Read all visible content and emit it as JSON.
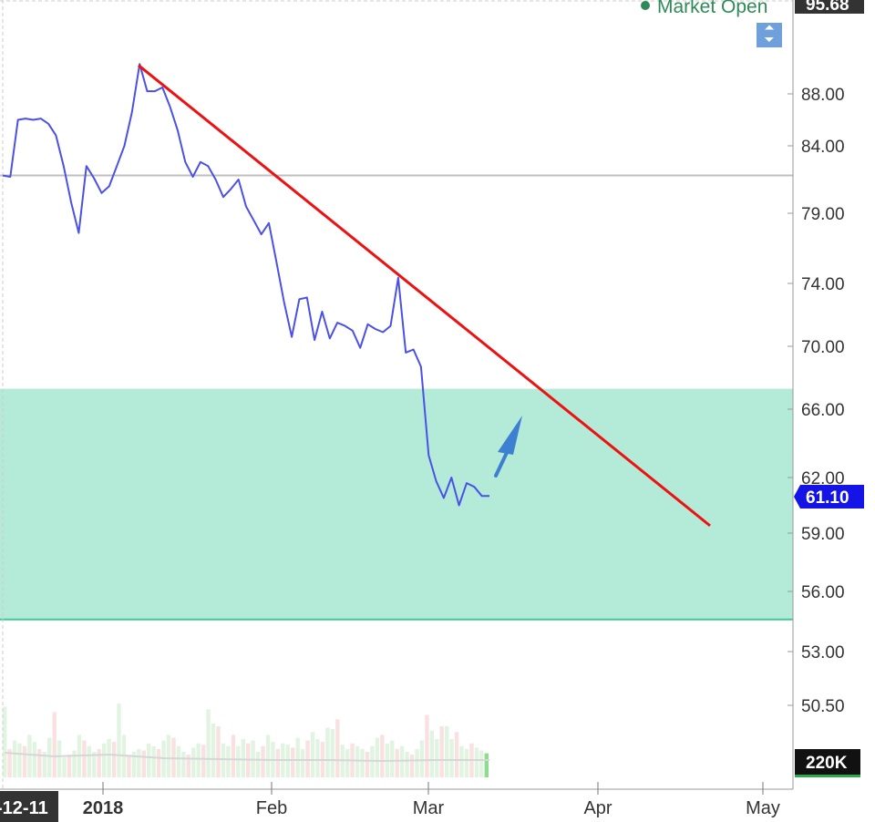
{
  "status": {
    "market_open": "Market Open",
    "dot_color": "#2e8b57"
  },
  "controls": {
    "collapse_icon": "collapse-vertical-icon"
  },
  "price_tag": {
    "last": "61.10",
    "top": "95.68",
    "volume": "220K"
  },
  "chart_data": {
    "type": "line",
    "y_axis": {
      "ticks": [
        "88.00",
        "84.00",
        "79.00",
        "74.00",
        "70.00",
        "66.00",
        "62.00",
        "59.00",
        "56.00",
        "53.00",
        "50.50"
      ],
      "tick_values": [
        88.0,
        84.0,
        79.0,
        74.0,
        70.0,
        66.0,
        62.0,
        59.0,
        56.0,
        53.0,
        50.5
      ]
    },
    "x_axis": {
      "labels": [
        "-12-11",
        "2018",
        "Feb",
        "Mar",
        "Apr",
        "May"
      ]
    },
    "zones": [
      {
        "name": "gray-zone",
        "from": 67.3,
        "to": 81.8,
        "color": "#f0f0f0"
      },
      {
        "name": "green-zone",
        "from": 54.6,
        "to": 67.3,
        "color": "#b3ebd8"
      }
    ],
    "series": [
      {
        "values": [
          81.8,
          81.7,
          86.0,
          86.1,
          86.0,
          86.1,
          85.7,
          84.8,
          82.5,
          79.8,
          77.6,
          82.5,
          81.6,
          80.5,
          81.0,
          82.5,
          84.0,
          86.6,
          90.3,
          88.2,
          88.2,
          88.5,
          87.0,
          85.2,
          82.8,
          81.7,
          82.8,
          82.5,
          81.5,
          80.2,
          80.8,
          81.5,
          79.5,
          78.5,
          77.5,
          78.3,
          75.5,
          72.8,
          70.6,
          73.0,
          73.1,
          70.4,
          72.2,
          70.5,
          71.5,
          71.3,
          71.0,
          69.9,
          71.4,
          71.1,
          70.9,
          71.3,
          74.4,
          69.6,
          69.8,
          68.7,
          63.3,
          61.8,
          60.9,
          62.0,
          60.5,
          61.7,
          61.5,
          61.0,
          61.0
        ],
        "color": "#4b50e6"
      }
    ],
    "trendline": {
      "from": 90.2,
      "to": 59.4,
      "color": "#ee1111"
    },
    "volume_scale": {
      "label": "220K"
    },
    "volume": [
      50,
      20,
      26,
      24,
      22,
      30,
      25,
      20,
      18,
      28,
      46,
      26,
      14,
      16,
      19,
      30,
      26,
      22,
      18,
      20,
      24,
      27,
      25,
      52,
      30,
      16,
      18,
      20,
      19,
      24,
      22,
      20,
      26,
      30,
      28,
      22,
      18,
      16,
      21,
      24,
      23,
      48,
      38,
      36,
      24,
      22,
      30,
      22,
      27,
      24,
      26,
      18,
      22,
      30,
      25,
      20,
      24,
      23,
      21,
      28,
      20,
      26,
      32,
      27,
      25,
      35,
      34,
      41,
      23,
      20,
      24,
      22,
      20,
      18,
      22,
      28,
      30,
      24,
      26,
      20,
      22,
      18,
      16,
      20,
      26,
      44,
      33,
      27,
      36,
      36,
      27,
      32,
      22,
      20,
      24,
      21,
      19,
      17
    ]
  }
}
